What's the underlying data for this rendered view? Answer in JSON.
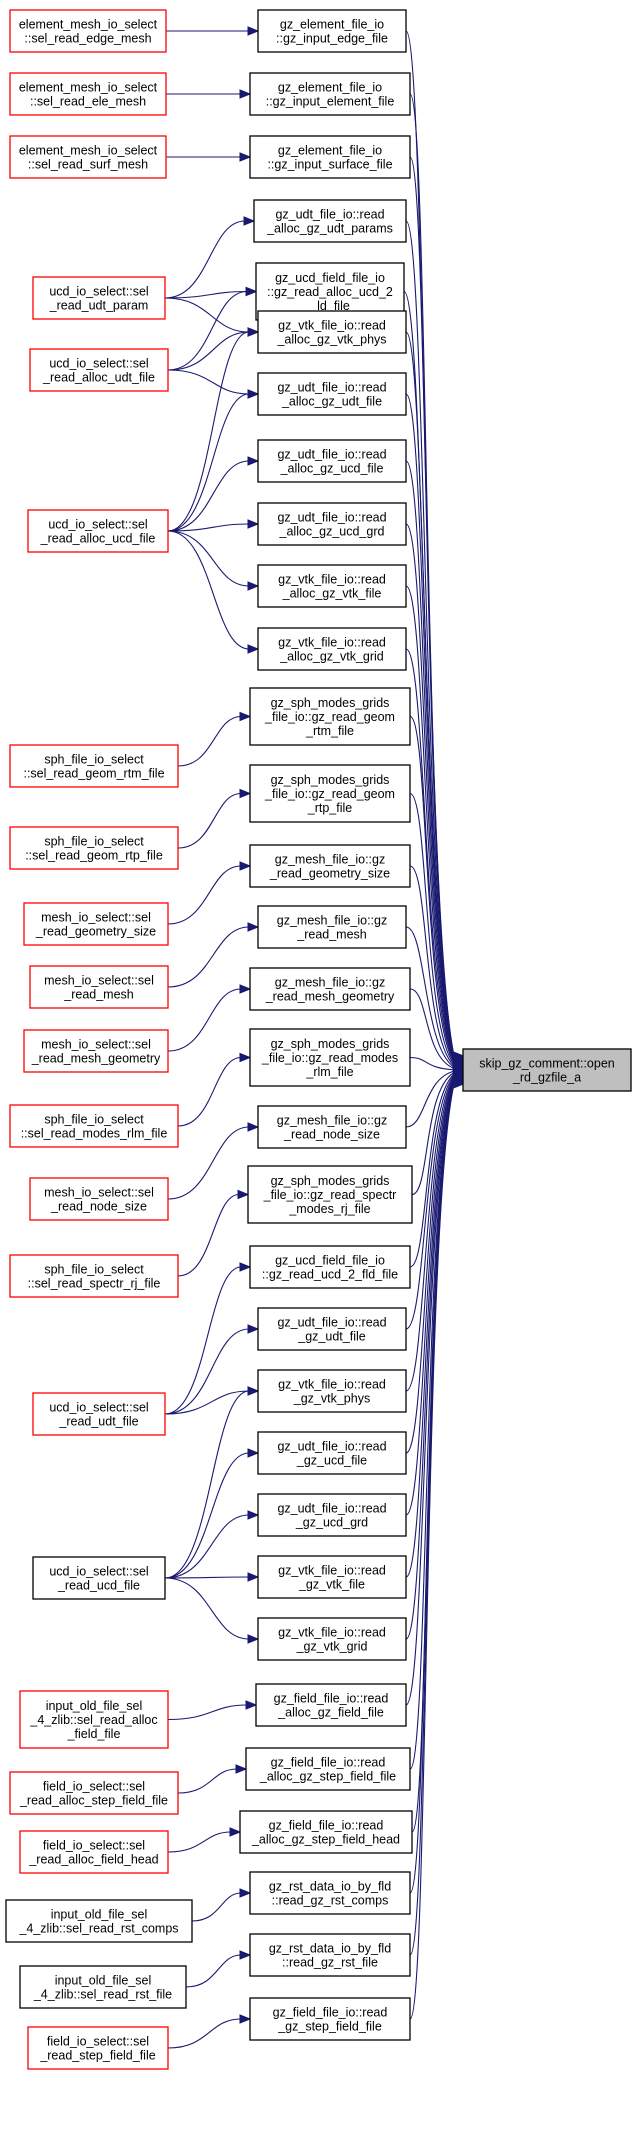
{
  "colors": {
    "caller_border_red": "#ff0000",
    "caller_border_black": "#000000",
    "target_fill": "#bfbfbf",
    "edge": "#191970",
    "background": "#ffffff"
  },
  "target": {
    "id": "target",
    "lines": [
      "skip_gz_comment::open",
      "_rd_gzfile_a"
    ]
  },
  "nodes": [
    {
      "id": "m1",
      "lines": [
        "gz_element_file_io",
        "::gz_input_edge_file"
      ],
      "border": "black"
    },
    {
      "id": "m2",
      "lines": [
        "gz_element_file_io",
        "::gz_input_element_file"
      ],
      "border": "black"
    },
    {
      "id": "m3",
      "lines": [
        "gz_element_file_io",
        "::gz_input_surface_file"
      ],
      "border": "black"
    },
    {
      "id": "m4",
      "lines": [
        "gz_udt_file_io::read",
        "_alloc_gz_udt_params"
      ],
      "border": "black"
    },
    {
      "id": "m5",
      "lines": [
        "gz_ucd_field_file_io",
        "::gz_read_alloc_ucd_2",
        "_ld_file"
      ],
      "border": "black"
    },
    {
      "id": "m6",
      "lines": [
        "gz_vtk_file_io::read",
        "_alloc_gz_vtk_phys"
      ],
      "border": "black"
    },
    {
      "id": "m7",
      "lines": [
        "gz_udt_file_io::read",
        "_alloc_gz_udt_file"
      ],
      "border": "black"
    },
    {
      "id": "m8",
      "lines": [
        "gz_udt_file_io::read",
        "_alloc_gz_ucd_file"
      ],
      "border": "black"
    },
    {
      "id": "m9",
      "lines": [
        "gz_udt_file_io::read",
        "_alloc_gz_ucd_grd"
      ],
      "border": "black"
    },
    {
      "id": "m10",
      "lines": [
        "gz_vtk_file_io::read",
        "_alloc_gz_vtk_file"
      ],
      "border": "black"
    },
    {
      "id": "m11",
      "lines": [
        "gz_vtk_file_io::read",
        "_alloc_gz_vtk_grid"
      ],
      "border": "black"
    },
    {
      "id": "m12",
      "lines": [
        "gz_sph_modes_grids",
        "_file_io::gz_read_geom",
        "_rtm_file"
      ],
      "border": "black"
    },
    {
      "id": "m13",
      "lines": [
        "gz_sph_modes_grids",
        "_file_io::gz_read_geom",
        "_rtp_file"
      ],
      "border": "black"
    },
    {
      "id": "m14",
      "lines": [
        "gz_mesh_file_io::gz",
        "_read_geometry_size"
      ],
      "border": "black"
    },
    {
      "id": "m15",
      "lines": [
        "gz_mesh_file_io::gz",
        "_read_mesh"
      ],
      "border": "black"
    },
    {
      "id": "m16",
      "lines": [
        "gz_mesh_file_io::gz",
        "_read_mesh_geometry"
      ],
      "border": "black"
    },
    {
      "id": "m17",
      "lines": [
        "gz_sph_modes_grids",
        "_file_io::gz_read_modes",
        "_rlm_file"
      ],
      "border": "black"
    },
    {
      "id": "m18",
      "lines": [
        "gz_mesh_file_io::gz",
        "_read_node_size"
      ],
      "border": "black"
    },
    {
      "id": "m19",
      "lines": [
        "gz_sph_modes_grids",
        "_file_io::gz_read_spectr",
        "_modes_rj_file"
      ],
      "border": "black"
    },
    {
      "id": "m20",
      "lines": [
        "gz_ucd_field_file_io",
        "::gz_read_ucd_2_fld_file"
      ],
      "border": "black"
    },
    {
      "id": "m21",
      "lines": [
        "gz_udt_file_io::read",
        "_gz_udt_file"
      ],
      "border": "black"
    },
    {
      "id": "m22",
      "lines": [
        "gz_vtk_file_io::read",
        "_gz_vtk_phys"
      ],
      "border": "black"
    },
    {
      "id": "m23",
      "lines": [
        "gz_udt_file_io::read",
        "_gz_ucd_file"
      ],
      "border": "black"
    },
    {
      "id": "m24",
      "lines": [
        "gz_udt_file_io::read",
        "_gz_ucd_grd"
      ],
      "border": "black"
    },
    {
      "id": "m25",
      "lines": [
        "gz_vtk_file_io::read",
        "_gz_vtk_file"
      ],
      "border": "black"
    },
    {
      "id": "m26",
      "lines": [
        "gz_vtk_file_io::read",
        "_gz_vtk_grid"
      ],
      "border": "black"
    },
    {
      "id": "m27",
      "lines": [
        "gz_field_file_io::read",
        "_alloc_gz_field_file"
      ],
      "border": "black"
    },
    {
      "id": "m28",
      "lines": [
        "gz_field_file_io::read",
        "_alloc_gz_step_field_file"
      ],
      "border": "black"
    },
    {
      "id": "m29",
      "lines": [
        "gz_field_file_io::read",
        "_alloc_gz_step_field_head"
      ],
      "border": "black"
    },
    {
      "id": "m30",
      "lines": [
        "gz_rst_data_io_by_fld",
        "::read_gz_rst_comps"
      ],
      "border": "black"
    },
    {
      "id": "m31",
      "lines": [
        "gz_rst_data_io_by_fld",
        "::read_gz_rst_file"
      ],
      "border": "black"
    },
    {
      "id": "m32",
      "lines": [
        "gz_field_file_io::read",
        "_gz_step_field_file"
      ],
      "border": "black"
    },
    {
      "id": "l1",
      "lines": [
        "element_mesh_io_select",
        "::sel_read_edge_mesh"
      ],
      "border": "red"
    },
    {
      "id": "l2",
      "lines": [
        "element_mesh_io_select",
        "::sel_read_ele_mesh"
      ],
      "border": "red"
    },
    {
      "id": "l3",
      "lines": [
        "element_mesh_io_select",
        "::sel_read_surf_mesh"
      ],
      "border": "red"
    },
    {
      "id": "l4",
      "lines": [
        "ucd_io_select::sel",
        "_read_udt_param"
      ],
      "border": "red"
    },
    {
      "id": "l5",
      "lines": [
        "ucd_io_select::sel",
        "_read_alloc_udt_file"
      ],
      "border": "red"
    },
    {
      "id": "l6",
      "lines": [
        "ucd_io_select::sel",
        "_read_alloc_ucd_file"
      ],
      "border": "red"
    },
    {
      "id": "l7",
      "lines": [
        "sph_file_io_select",
        "::sel_read_geom_rtm_file"
      ],
      "border": "red"
    },
    {
      "id": "l8",
      "lines": [
        "sph_file_io_select",
        "::sel_read_geom_rtp_file"
      ],
      "border": "red"
    },
    {
      "id": "l9",
      "lines": [
        "mesh_io_select::sel",
        "_read_geometry_size"
      ],
      "border": "red"
    },
    {
      "id": "l10",
      "lines": [
        "mesh_io_select::sel",
        "_read_mesh"
      ],
      "border": "red"
    },
    {
      "id": "l11",
      "lines": [
        "mesh_io_select::sel",
        "_read_mesh_geometry"
      ],
      "border": "red"
    },
    {
      "id": "l12",
      "lines": [
        "sph_file_io_select",
        "::sel_read_modes_rlm_file"
      ],
      "border": "red"
    },
    {
      "id": "l13",
      "lines": [
        "mesh_io_select::sel",
        "_read_node_size"
      ],
      "border": "red"
    },
    {
      "id": "l14",
      "lines": [
        "sph_file_io_select",
        "::sel_read_spectr_rj_file"
      ],
      "border": "red"
    },
    {
      "id": "l15",
      "lines": [
        "ucd_io_select::sel",
        "_read_udt_file"
      ],
      "border": "red"
    },
    {
      "id": "l16",
      "lines": [
        "ucd_io_select::sel",
        "_read_ucd_file"
      ],
      "border": "black"
    },
    {
      "id": "l17",
      "lines": [
        "input_old_file_sel",
        "_4_zlib::sel_read_alloc",
        "_field_file"
      ],
      "border": "red"
    },
    {
      "id": "l18",
      "lines": [
        "field_io_select::sel",
        "_read_alloc_step_field_file"
      ],
      "border": "red"
    },
    {
      "id": "l19",
      "lines": [
        "field_io_select::sel",
        "_read_alloc_field_head"
      ],
      "border": "red"
    },
    {
      "id": "l20",
      "lines": [
        "input_old_file_sel",
        "_4_zlib::sel_read_rst_comps"
      ],
      "border": "black"
    },
    {
      "id": "l21",
      "lines": [
        "input_old_file_sel",
        "_4_zlib::sel_read_rst_file"
      ],
      "border": "black"
    },
    {
      "id": "l22",
      "lines": [
        "field_io_select::sel",
        "_read_step_field_file"
      ],
      "border": "red"
    }
  ],
  "edges": [
    [
      "l1",
      "m1"
    ],
    [
      "l2",
      "m2"
    ],
    [
      "l3",
      "m3"
    ],
    [
      "l4",
      "m4"
    ],
    [
      "l4",
      "m5"
    ],
    [
      "l4",
      "m6"
    ],
    [
      "l5",
      "m5"
    ],
    [
      "l5",
      "m6"
    ],
    [
      "l5",
      "m7"
    ],
    [
      "l6",
      "m6"
    ],
    [
      "l6",
      "m7"
    ],
    [
      "l6",
      "m8"
    ],
    [
      "l6",
      "m9"
    ],
    [
      "l6",
      "m10"
    ],
    [
      "l6",
      "m11"
    ],
    [
      "l7",
      "m12"
    ],
    [
      "l8",
      "m13"
    ],
    [
      "l9",
      "m14"
    ],
    [
      "l10",
      "m15"
    ],
    [
      "l11",
      "m16"
    ],
    [
      "l12",
      "m17"
    ],
    [
      "l13",
      "m18"
    ],
    [
      "l14",
      "m19"
    ],
    [
      "l15",
      "m20"
    ],
    [
      "l15",
      "m21"
    ],
    [
      "l15",
      "m22"
    ],
    [
      "l16",
      "m22"
    ],
    [
      "l16",
      "m23"
    ],
    [
      "l16",
      "m24"
    ],
    [
      "l16",
      "m25"
    ],
    [
      "l16",
      "m26"
    ],
    [
      "l17",
      "m27"
    ],
    [
      "l18",
      "m28"
    ],
    [
      "l19",
      "m29"
    ],
    [
      "l20",
      "m30"
    ],
    [
      "l21",
      "m31"
    ],
    [
      "l22",
      "m32"
    ],
    [
      "m1",
      "target"
    ],
    [
      "m2",
      "target"
    ],
    [
      "m3",
      "target"
    ],
    [
      "m4",
      "target"
    ],
    [
      "m5",
      "target"
    ],
    [
      "m6",
      "target"
    ],
    [
      "m7",
      "target"
    ],
    [
      "m8",
      "target"
    ],
    [
      "m9",
      "target"
    ],
    [
      "m10",
      "target"
    ],
    [
      "m11",
      "target"
    ],
    [
      "m12",
      "target"
    ],
    [
      "m13",
      "target"
    ],
    [
      "m14",
      "target"
    ],
    [
      "m15",
      "target"
    ],
    [
      "m16",
      "target"
    ],
    [
      "m17",
      "target"
    ],
    [
      "m18",
      "target"
    ],
    [
      "m19",
      "target"
    ],
    [
      "m20",
      "target"
    ],
    [
      "m21",
      "target"
    ],
    [
      "m22",
      "target"
    ],
    [
      "m23",
      "target"
    ],
    [
      "m24",
      "target"
    ],
    [
      "m25",
      "target"
    ],
    [
      "m26",
      "target"
    ],
    [
      "m27",
      "target"
    ],
    [
      "m28",
      "target"
    ],
    [
      "m29",
      "target"
    ],
    [
      "m30",
      "target"
    ],
    [
      "m31",
      "target"
    ],
    [
      "m32",
      "target"
    ]
  ]
}
